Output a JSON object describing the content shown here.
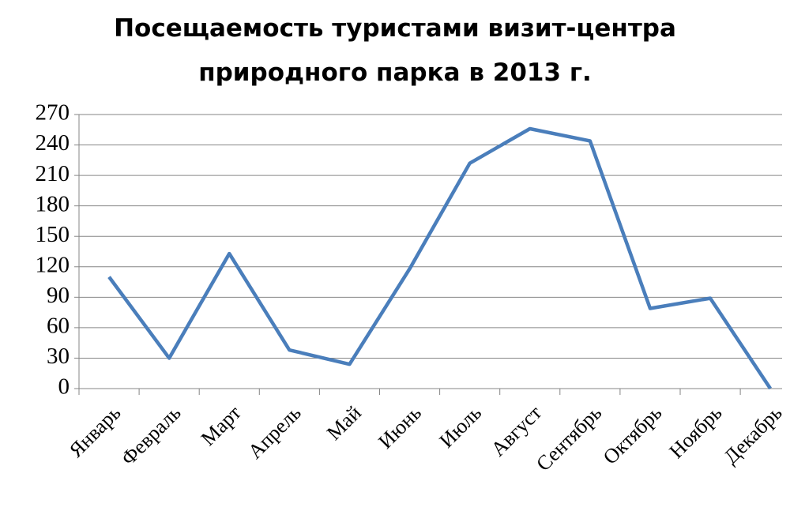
{
  "chart_data": {
    "type": "line",
    "title": "Посещаемость туристами визит-центра природного парка в 2013 г.",
    "categories": [
      "Январь",
      "Февраль",
      "Март",
      "Апрель",
      "Май",
      "Июнь",
      "Июль",
      "Август",
      "Сентябрь",
      "Октябрь",
      "Ноябрь",
      "Декабрь"
    ],
    "series": [
      {
        "name": "Посещаемость",
        "color": "#4a7ebb",
        "values": [
          110,
          30,
          133,
          38,
          24,
          118,
          222,
          256,
          244,
          79,
          89,
          0
        ]
      }
    ],
    "ylim": [
      0,
      270
    ],
    "yticks": [
      0,
      30,
      60,
      90,
      120,
      150,
      180,
      210,
      240,
      270
    ],
    "grid": true,
    "legend": false
  }
}
